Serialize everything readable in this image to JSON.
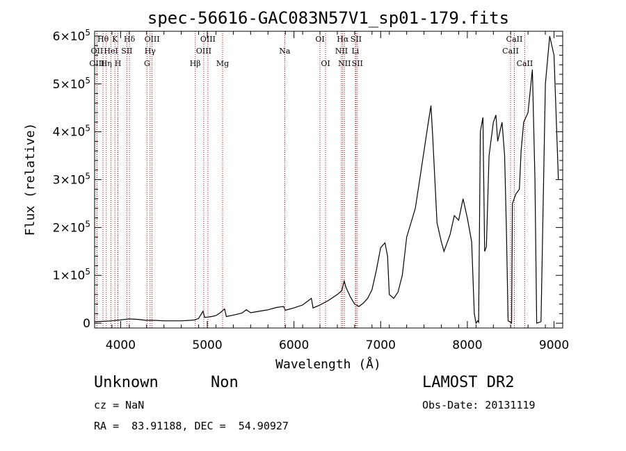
{
  "chart_data": {
    "type": "line",
    "title": "spec-56616-GAC083N57V1_sp01-179.fits",
    "xlabel": "Wavelength (Å)",
    "ylabel": "Flux (relative)",
    "xlim": [
      3700,
      9100
    ],
    "ylim": [
      -10000,
      610000
    ],
    "xticks": [
      {
        "value": 4000,
        "label": "4000"
      },
      {
        "value": 5000,
        "label": "5000"
      },
      {
        "value": 6000,
        "label": "6000"
      },
      {
        "value": 7000,
        "label": "7000"
      },
      {
        "value": 8000,
        "label": "8000"
      },
      {
        "value": 9000,
        "label": "9000"
      }
    ],
    "yticks": [
      {
        "value": 0,
        "mant": "0",
        "exp": ""
      },
      {
        "value": 100000,
        "mant": "1×10",
        "exp": "5"
      },
      {
        "value": 200000,
        "mant": "2×10",
        "exp": "5"
      },
      {
        "value": 300000,
        "mant": "3×10",
        "exp": "5"
      },
      {
        "value": 400000,
        "mant": "4×10",
        "exp": "5"
      },
      {
        "value": 500000,
        "mant": "5×10",
        "exp": "5"
      },
      {
        "value": 600000,
        "mant": "6×10",
        "exp": "5"
      }
    ],
    "grid": false,
    "series": [
      {
        "color": "#000000",
        "points": [
          [
            3700,
            3000
          ],
          [
            3800,
            4000
          ],
          [
            3900,
            5000
          ],
          [
            3950,
            6000
          ],
          [
            4000,
            7000
          ],
          [
            4100,
            9000
          ],
          [
            4200,
            8000
          ],
          [
            4300,
            6000
          ],
          [
            4400,
            6000
          ],
          [
            4500,
            5000
          ],
          [
            4600,
            5000
          ],
          [
            4700,
            5000
          ],
          [
            4800,
            6000
          ],
          [
            4860,
            7000
          ],
          [
            4900,
            10000
          ],
          [
            4950,
            25000
          ],
          [
            4970,
            12000
          ],
          [
            5050,
            14000
          ],
          [
            5100,
            16000
          ],
          [
            5150,
            22000
          ],
          [
            5200,
            30000
          ],
          [
            5220,
            14000
          ],
          [
            5300,
            17000
          ],
          [
            5400,
            21000
          ],
          [
            5450,
            28000
          ],
          [
            5500,
            22000
          ],
          [
            5600,
            25000
          ],
          [
            5700,
            28000
          ],
          [
            5800,
            33000
          ],
          [
            5880,
            35000
          ],
          [
            5900,
            27000
          ],
          [
            6000,
            32000
          ],
          [
            6100,
            38000
          ],
          [
            6150,
            45000
          ],
          [
            6200,
            52000
          ],
          [
            6220,
            32000
          ],
          [
            6300,
            38000
          ],
          [
            6400,
            48000
          ],
          [
            6500,
            60000
          ],
          [
            6550,
            68000
          ],
          [
            6580,
            88000
          ],
          [
            6600,
            75000
          ],
          [
            6650,
            55000
          ],
          [
            6700,
            40000
          ],
          [
            6750,
            35000
          ],
          [
            6800,
            42000
          ],
          [
            6850,
            52000
          ],
          [
            6900,
            70000
          ],
          [
            6950,
            110000
          ],
          [
            7000,
            158000
          ],
          [
            7050,
            168000
          ],
          [
            7080,
            140000
          ],
          [
            7100,
            60000
          ],
          [
            7150,
            52000
          ],
          [
            7200,
            65000
          ],
          [
            7250,
            100000
          ],
          [
            7300,
            180000
          ],
          [
            7400,
            240000
          ],
          [
            7450,
            300000
          ],
          [
            7500,
            360000
          ],
          [
            7550,
            420000
          ],
          [
            7580,
            455000
          ],
          [
            7600,
            390000
          ],
          [
            7650,
            210000
          ],
          [
            7700,
            170000
          ],
          [
            7730,
            150000
          ],
          [
            7750,
            160000
          ],
          [
            7800,
            185000
          ],
          [
            7850,
            225000
          ],
          [
            7900,
            215000
          ],
          [
            7950,
            260000
          ],
          [
            8000,
            220000
          ],
          [
            8050,
            170000
          ],
          [
            8080,
            20000
          ],
          [
            8100,
            0
          ],
          [
            8120,
            5000
          ],
          [
            8130,
            2000
          ],
          [
            8150,
            400000
          ],
          [
            8180,
            430000
          ],
          [
            8200,
            150000
          ],
          [
            8220,
            160000
          ],
          [
            8250,
            350000
          ],
          [
            8300,
            420000
          ],
          [
            8330,
            435000
          ],
          [
            8350,
            380000
          ],
          [
            8400,
            420000
          ],
          [
            8430,
            350000
          ],
          [
            8450,
            200000
          ],
          [
            8470,
            5000
          ],
          [
            8490,
            3000
          ],
          [
            8510,
            0
          ],
          [
            8520,
            250000
          ],
          [
            8560,
            270000
          ],
          [
            8600,
            280000
          ],
          [
            8620,
            360000
          ],
          [
            8650,
            420000
          ],
          [
            8700,
            440000
          ],
          [
            8750,
            530000
          ],
          [
            8780,
            300000
          ],
          [
            8800,
            0
          ],
          [
            8850,
            3000
          ],
          [
            8900,
            500000
          ],
          [
            8950,
            600000
          ],
          [
            9000,
            560000
          ],
          [
            9050,
            300000
          ]
        ]
      }
    ],
    "emission_lines": [
      {
        "label": "Hθ",
        "wave": 3797,
        "row": 1
      },
      {
        "label": "OII",
        "wave": 3727,
        "row": 2
      },
      {
        "label": "OIII",
        "wave": 3727,
        "row": 3
      },
      {
        "label": "Hη",
        "wave": 3835,
        "row": 3
      },
      {
        "label": "K",
        "wave": 3934,
        "row": 1
      },
      {
        "label": "HeI",
        "wave": 3889,
        "row": 2
      },
      {
        "label": "H",
        "wave": 3969,
        "row": 3
      },
      {
        "label": "SII",
        "wave": 4072,
        "row": 2
      },
      {
        "label": "Hδ",
        "wave": 4102,
        "row": 1
      },
      {
        "label": "OIII",
        "wave": 4363,
        "row": 1
      },
      {
        "label": "Hγ",
        "wave": 4340,
        "row": 2
      },
      {
        "label": "G",
        "wave": 4305,
        "row": 3
      },
      {
        "label": "Hβ",
        "wave": 4861,
        "row": 3
      },
      {
        "label": "OIII",
        "wave": 5007,
        "row": 1
      },
      {
        "label": "OIII",
        "wave": 4959,
        "row": 2
      },
      {
        "label": "Mg",
        "wave": 5176,
        "row": 3
      },
      {
        "label": "Na",
        "wave": 5894,
        "row": 2
      },
      {
        "label": "OI",
        "wave": 6300,
        "row": 1
      },
      {
        "label": "OI",
        "wave": 6364,
        "row": 3
      },
      {
        "label": "Hα",
        "wave": 6563,
        "row": 1
      },
      {
        "label": "SII",
        "wave": 6716,
        "row": 1
      },
      {
        "label": "NII",
        "wave": 6548,
        "row": 2
      },
      {
        "label": "Li",
        "wave": 6708,
        "row": 2
      },
      {
        "label": "NII",
        "wave": 6583,
        "row": 3
      },
      {
        "label": "SII",
        "wave": 6731,
        "row": 3
      },
      {
        "label": "CaII",
        "wave": 8542,
        "row": 1
      },
      {
        "label": "CaII",
        "wave": 8498,
        "row": 2
      },
      {
        "label": "CaII",
        "wave": 8662,
        "row": 3
      }
    ],
    "line_color": "#cc0000"
  },
  "info": {
    "class": "Unknown",
    "subclass": "Non",
    "survey": "LAMOST DR2",
    "cz": "cz = NaN",
    "obsdate": "Obs-Date: 20131119",
    "radec": "RA =  83.91188, DEC =  54.90927"
  }
}
